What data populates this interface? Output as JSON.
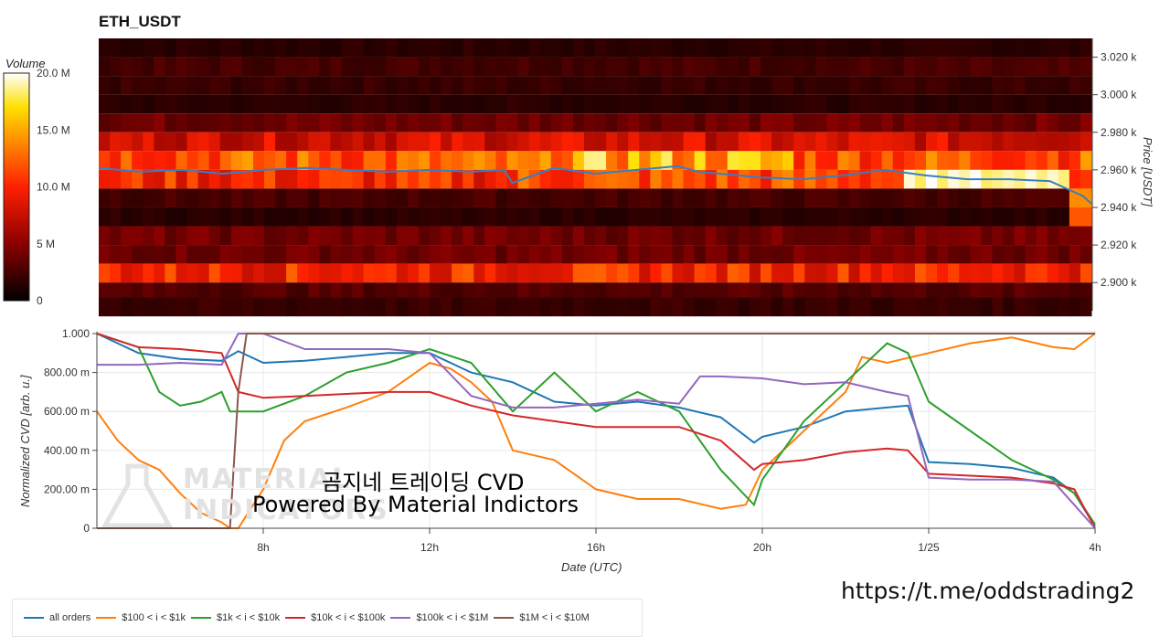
{
  "heatmap": {
    "title": "ETH_USDT",
    "ylabel": "Price [USDT]",
    "colorbar_title": "Volume",
    "colorbar_ticks": [
      "20.0 M",
      "15.0 M",
      "10.0 M",
      "5 M",
      "0"
    ],
    "price_ticks": [
      "3.020 k",
      "3.000 k",
      "2.980 k",
      "2.960 k",
      "2.940 k",
      "2.920 k",
      "2.900 k"
    ]
  },
  "cvd": {
    "ylabel": "Normalized CVD [arb. u.]",
    "xlabel": "Date (UTC)",
    "y_ticks": [
      "1.000",
      "800.00 m",
      "600.00 m",
      "400.00 m",
      "200.00 m",
      "0"
    ],
    "x_ticks": [
      "8h",
      "12h",
      "16h",
      "20h",
      "1/25",
      "4h"
    ]
  },
  "overlay": {
    "line1": "곰지네 트레이딩 CVD",
    "line2": "Powered By Material Indictors",
    "watermark_line1": "MATERIAL",
    "watermark_line2": "INDICATORS",
    "url": "https://t.me/oddstrading2"
  },
  "legend": [
    {
      "label": "all orders",
      "color": "#1f77b4"
    },
    {
      "label": "$100 < i < $1k",
      "color": "#ff7f0e"
    },
    {
      "label": "$1k < i < $10k",
      "color": "#2ca02c"
    },
    {
      "label": "$10k < i < $100k",
      "color": "#d62728"
    },
    {
      "label": "$100k < i < $1M",
      "color": "#9467bd"
    },
    {
      "label": "$1M < i < $10M",
      "color": "#8c564b"
    }
  ],
  "chart_data": [
    {
      "type": "heatmap",
      "title": "ETH_USDT",
      "ylabel": "Price [USDT]",
      "colorbar": {
        "label": "Volume",
        "range": [
          0,
          20000000
        ]
      },
      "ylim": [
        2885,
        3030
      ],
      "price_bins": [
        3025,
        3015,
        3005,
        2995,
        2985,
        2975,
        2965,
        2955,
        2945,
        2935,
        2925,
        2915,
        2905,
        2895,
        2887
      ],
      "bin_base_volume_M": [
        1.5,
        2.5,
        2,
        1.5,
        4,
        8,
        12,
        10,
        2.5,
        1.5,
        4,
        4,
        10,
        3,
        2
      ],
      "last_price_series": {
        "x_hours": [
          4,
          5,
          6,
          7,
          8,
          9,
          10,
          11,
          12,
          13,
          13.8,
          14,
          14.5,
          15,
          16,
          17,
          18,
          18.5,
          19,
          20,
          21,
          22,
          23,
          24,
          25,
          26,
          27,
          27.8,
          28
        ],
        "price": [
          2961,
          2959,
          2960,
          2958,
          2960,
          2961,
          2960,
          2959,
          2960,
          2959,
          2960,
          2953,
          2957,
          2961,
          2958,
          2960,
          2962,
          2959,
          2958,
          2956,
          2955,
          2957,
          2960,
          2957,
          2955,
          2955,
          2954,
          2946,
          2942
        ]
      }
    },
    {
      "type": "line",
      "xlabel": "Date (UTC)",
      "ylabel": "Normalized CVD [arb. u.]",
      "xlim": [
        4,
        28
      ],
      "ylim": [
        0,
        1
      ],
      "x_tick_labels": {
        "8": "8h",
        "12": "12h",
        "16": "16h",
        "20": "20h",
        "24": "1/25",
        "28": "4h"
      },
      "series": [
        {
          "name": "all orders",
          "color": "#1f77b4",
          "x": [
            4,
            5,
            6,
            7,
            7.4,
            8,
            9,
            10,
            11,
            12,
            13,
            14,
            15,
            16,
            17,
            18,
            19,
            19.8,
            20,
            21,
            22,
            23,
            23.5,
            24,
            25,
            26,
            27,
            27.5,
            28
          ],
          "y": [
            1.0,
            0.9,
            0.87,
            0.86,
            0.91,
            0.85,
            0.86,
            0.88,
            0.9,
            0.9,
            0.8,
            0.75,
            0.65,
            0.63,
            0.65,
            0.62,
            0.57,
            0.44,
            0.47,
            0.52,
            0.6,
            0.62,
            0.63,
            0.34,
            0.33,
            0.31,
            0.26,
            0.18,
            0.01
          ]
        },
        {
          "name": "$100 < i < $1k",
          "color": "#ff7f0e",
          "x": [
            4,
            4.5,
            5,
            5.5,
            6,
            6.5,
            7,
            7.2,
            7.4,
            8,
            8.5,
            9,
            10,
            11,
            12,
            12.5,
            13,
            13.5,
            14,
            15,
            16,
            17,
            18,
            19,
            19.6,
            20,
            21,
            22,
            22.4,
            23,
            24,
            25,
            26,
            27,
            27.5,
            28
          ],
          "y": [
            0.6,
            0.45,
            0.35,
            0.3,
            0.18,
            0.08,
            0.03,
            0.0,
            0.0,
            0.2,
            0.45,
            0.55,
            0.62,
            0.7,
            0.85,
            0.82,
            0.75,
            0.65,
            0.4,
            0.35,
            0.2,
            0.15,
            0.15,
            0.1,
            0.12,
            0.3,
            0.5,
            0.7,
            0.88,
            0.85,
            0.9,
            0.95,
            0.98,
            0.93,
            0.92,
            1.0
          ]
        },
        {
          "name": "$1k < i < $10k",
          "color": "#2ca02c",
          "x": [
            4,
            5,
            5.5,
            6,
            6.5,
            7,
            7.2,
            7.4,
            8,
            9,
            10,
            11,
            12,
            13,
            14,
            15,
            16,
            17,
            18,
            19,
            19.8,
            20,
            21,
            22,
            23,
            23.5,
            24,
            25,
            26,
            27,
            27.5,
            28
          ],
          "y": [
            1.0,
            0.93,
            0.7,
            0.63,
            0.65,
            0.7,
            0.6,
            0.6,
            0.6,
            0.68,
            0.8,
            0.85,
            0.92,
            0.85,
            0.6,
            0.8,
            0.6,
            0.7,
            0.6,
            0.3,
            0.12,
            0.25,
            0.55,
            0.75,
            0.95,
            0.9,
            0.65,
            0.5,
            0.35,
            0.25,
            0.18,
            0.02
          ]
        },
        {
          "name": "$10k < i < $100k",
          "color": "#d62728",
          "x": [
            4,
            5,
            6,
            7,
            7.2,
            7.4,
            8,
            9,
            10,
            11,
            12,
            13,
            14,
            15,
            16,
            17,
            18,
            19,
            19.8,
            20,
            21,
            22,
            23,
            23.5,
            24,
            25,
            26,
            27,
            27.5,
            28
          ],
          "y": [
            1.0,
            0.93,
            0.92,
            0.9,
            0.8,
            0.7,
            0.67,
            0.68,
            0.69,
            0.7,
            0.7,
            0.63,
            0.58,
            0.55,
            0.52,
            0.52,
            0.52,
            0.45,
            0.3,
            0.33,
            0.35,
            0.39,
            0.41,
            0.4,
            0.28,
            0.27,
            0.26,
            0.23,
            0.2,
            0.0
          ]
        },
        {
          "name": "$100k < i < $1M",
          "color": "#9467bd",
          "x": [
            4,
            5,
            6,
            7,
            7.4,
            8,
            9,
            10,
            11,
            12,
            13,
            14,
            15,
            16,
            17,
            18,
            18.5,
            19,
            20,
            21,
            22,
            23,
            23.5,
            24,
            25,
            26,
            27,
            27.5,
            28
          ],
          "y": [
            0.84,
            0.84,
            0.85,
            0.84,
            1.0,
            1.0,
            0.92,
            0.92,
            0.92,
            0.9,
            0.68,
            0.62,
            0.62,
            0.64,
            0.66,
            0.64,
            0.78,
            0.78,
            0.77,
            0.74,
            0.75,
            0.7,
            0.68,
            0.26,
            0.25,
            0.25,
            0.24,
            0.12,
            0.0
          ]
        },
        {
          "name": "$1M < i < $10M",
          "color": "#8c564b",
          "x": [
            4,
            5,
            6,
            7,
            7.2,
            7.4,
            7.6,
            8,
            12,
            16,
            20,
            24,
            28
          ],
          "y": [
            0.0,
            0.0,
            0.0,
            0.0,
            0.0,
            0.7,
            1.0,
            1.0,
            1.0,
            1.0,
            1.0,
            1.0,
            1.0
          ]
        }
      ]
    }
  ]
}
